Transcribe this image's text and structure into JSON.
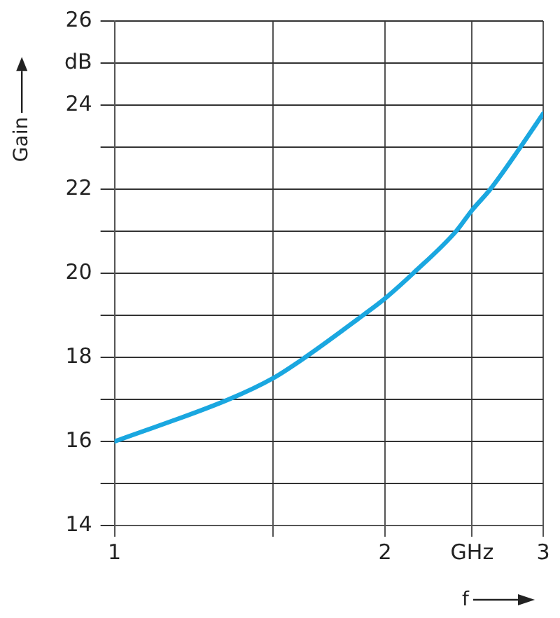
{
  "chart_data": {
    "type": "line",
    "xlabel": "f",
    "ylabel": "Gain",
    "log": "x",
    "grid": true,
    "legend": false,
    "marker": "none",
    "line_style": "solid",
    "xlim": [
      1,
      3
    ],
    "xticks": [
      1,
      {
        "value": 1.5,
        "label": null
      },
      2,
      {
        "value": 2.5,
        "label": "GHz"
      },
      3
    ],
    "ylim": [
      14,
      26
    ],
    "yticks": [
      14,
      {
        "value": 15,
        "label": null
      },
      16,
      {
        "value": 17,
        "label": null
      },
      18,
      {
        "value": 19,
        "label": null
      },
      20,
      {
        "value": 21,
        "label": null
      },
      22,
      {
        "value": 23,
        "label": null
      },
      24,
      {
        "value": 25,
        "label": "dB"
      },
      26
    ],
    "series": [
      {
        "color": "#1aa7e0",
        "x": [
          1,
          1.34,
          1.5,
          1.63,
          1.89,
          2,
          2.15,
          2.4,
          2.5,
          2.62,
          2.83,
          3
        ],
        "values": [
          16,
          17,
          17.5,
          18,
          19,
          19.4,
          20,
          21,
          21.5,
          22,
          23,
          23.8
        ]
      }
    ]
  }
}
